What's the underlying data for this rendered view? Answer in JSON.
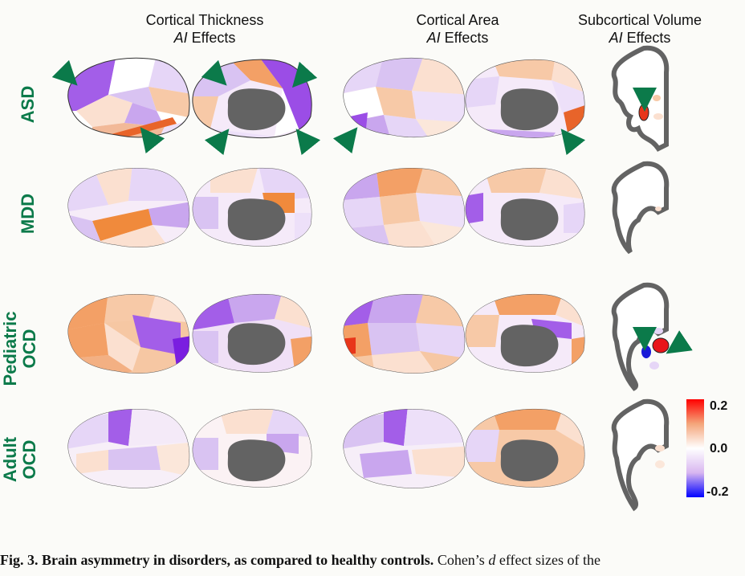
{
  "columns": [
    {
      "title": "Cortical Thickness",
      "subtitle_italic": "AI",
      "subtitle_rest": " Effects"
    },
    {
      "title": "Cortical Area",
      "subtitle_italic": "AI",
      "subtitle_rest": " Effects"
    },
    {
      "title": "Subcortical Volume",
      "subtitle_italic": "AI",
      "subtitle_rest": " Effects"
    }
  ],
  "rows": [
    {
      "line1": "ASD",
      "line2": ""
    },
    {
      "line1": "MDD",
      "line2": ""
    },
    {
      "line1": "Pediatric",
      "line2": "OCD"
    },
    {
      "line1": "Adult",
      "line2": "OCD"
    }
  ],
  "colorbar": {
    "max": "0.2",
    "mid": "0.0",
    "min": "-0.2",
    "colors": [
      "#ff0000",
      "#f4a57a",
      "#ffffff",
      "#d8b6f0",
      "#0000ff"
    ]
  },
  "caption": {
    "bold": "Fig. 3. Brain asymmetry in disorders, as compared to healthy controls.",
    "pre": " Cohen’s ",
    "italic": "d",
    "post": " effect sizes of the"
  },
  "palette": {
    "gray": "#636363",
    "arrow": "#0b7a4a",
    "orange": "#f08a3c",
    "purple": "#a35ee8",
    "lilac": "#e6d6f7"
  }
}
